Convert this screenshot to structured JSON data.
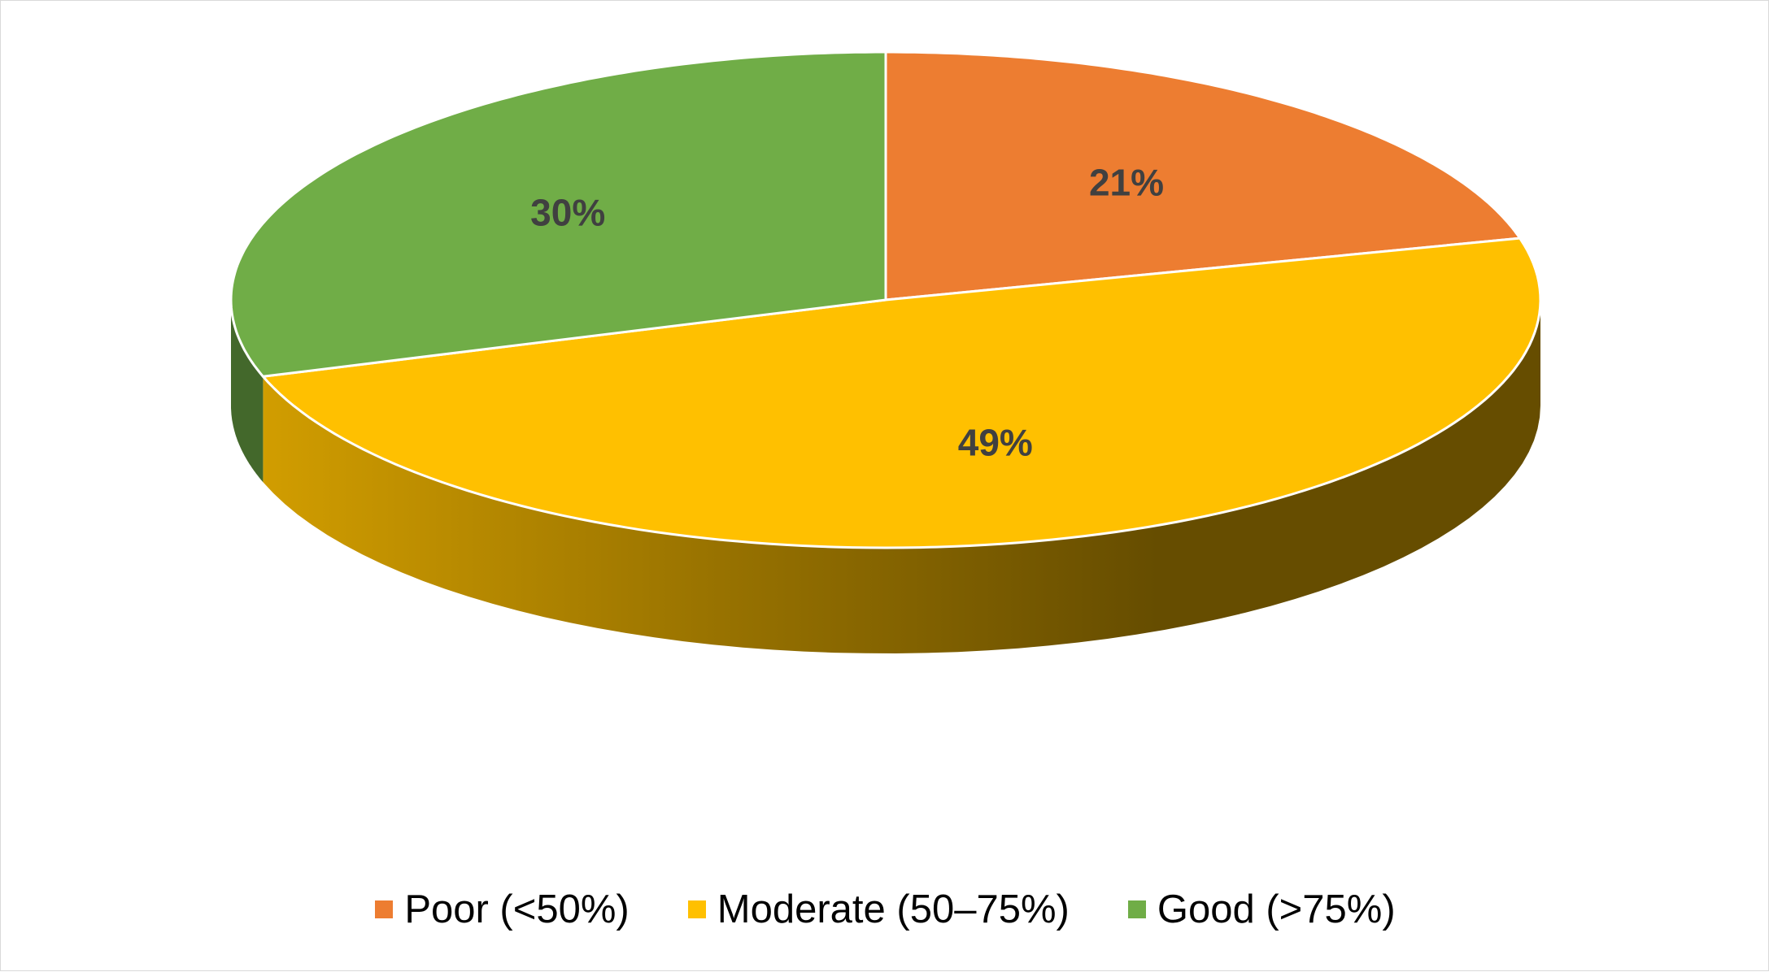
{
  "chart_data": {
    "type": "pie",
    "variant": "3d",
    "categories": [
      "Poor (<50%)",
      "Moderate (50–75%)",
      "Good (>75%)"
    ],
    "values": [
      21,
      49,
      30
    ],
    "labels": [
      "21%",
      "49%",
      "30%"
    ],
    "colors": [
      "#ED7D31",
      "#FFC000",
      "#70AD47"
    ],
    "title": "",
    "legend": "bottom",
    "start_angle_deg": 0,
    "direction": "clockwise"
  }
}
